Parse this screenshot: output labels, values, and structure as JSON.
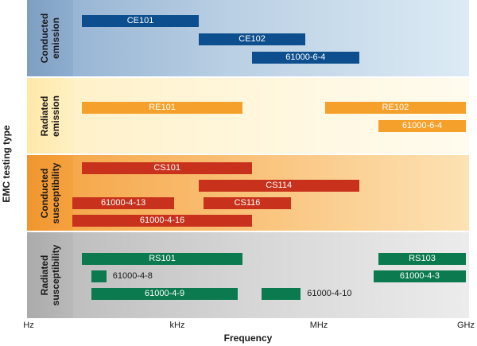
{
  "colors": {
    "emission_conducted_bar": "#0d4f8e",
    "emission_radiated_bar": "#f5a02a",
    "susceptibility_conducted_bar": "#c8321c",
    "susceptibility_radiated_bar": "#0b7a4e"
  },
  "y_title": "EMC testing type",
  "x_title": "Frequency",
  "x_ticks": [
    "Hz",
    "kHz",
    "MHz",
    "GHz"
  ],
  "bands": [
    {
      "label_line1": "Conducted",
      "label_line2": "emission",
      "bars": [
        {
          "label": "CE101",
          "start_decade": 1.1,
          "end_decade": 3.5,
          "row": 0
        },
        {
          "label": "CE102",
          "start_decade": 3.5,
          "end_decade": 5.7,
          "row": 1
        },
        {
          "label": "61000-6-4",
          "start_decade": 4.6,
          "end_decade": 6.8,
          "row": 2
        }
      ]
    },
    {
      "label_line1": "Radiated",
      "label_line2": "emission",
      "bars": [
        {
          "label": "RE101",
          "start_decade": 1.1,
          "end_decade": 4.4,
          "row": 0
        },
        {
          "label": "RE102",
          "start_decade": 6.1,
          "end_decade": 9.0,
          "row": 0
        },
        {
          "label": "61000-6-4",
          "start_decade": 7.2,
          "end_decade": 9.0,
          "row": 1
        }
      ]
    },
    {
      "label_line1": "Conducted",
      "label_line2": "susceptibility",
      "bars": [
        {
          "label": "CS101",
          "start_decade": 1.1,
          "end_decade": 4.6,
          "row": 0
        },
        {
          "label": "CS114",
          "start_decade": 3.5,
          "end_decade": 6.8,
          "row": 1
        },
        {
          "label": "61000-4-13",
          "start_decade": 0.9,
          "end_decade": 3.0,
          "row": 2
        },
        {
          "label": "CS116",
          "start_decade": 3.6,
          "end_decade": 5.4,
          "row": 2
        },
        {
          "label": "61000-4-16",
          "start_decade": 0.9,
          "end_decade": 4.6,
          "row": 3
        }
      ]
    },
    {
      "label_line1": "Radiated",
      "label_line2": "susceptibility",
      "bars": [
        {
          "label": "RS101",
          "start_decade": 1.1,
          "end_decade": 4.4,
          "row": 0
        },
        {
          "label": "RS103",
          "start_decade": 7.2,
          "end_decade": 9.0,
          "row": 0
        },
        {
          "label": "61000-4-8",
          "start_decade": 1.3,
          "end_decade": 1.6,
          "row": 1,
          "outside": true
        },
        {
          "label": "61000-4-3",
          "start_decade": 7.1,
          "end_decade": 9.0,
          "row": 1
        },
        {
          "label": "61000-4-9",
          "start_decade": 1.3,
          "end_decade": 4.3,
          "row": 2
        },
        {
          "label": "61000-4-10",
          "start_decade": 4.8,
          "end_decade": 5.6,
          "row": 2,
          "outside": true
        }
      ]
    }
  ]
}
